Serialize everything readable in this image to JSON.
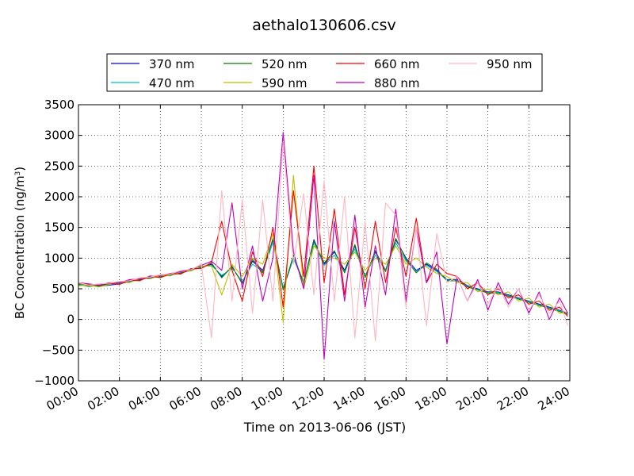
{
  "chart_data": {
    "type": "line",
    "title": "aethalo130606.csv",
    "xlabel": "Time on 2013-06-06 (JST)",
    "ylabel_main": "BC Concentration (ng/m",
    "ylabel_sup": "3",
    "ylabel_close": ")",
    "xlim": [
      "00:00",
      "24:00"
    ],
    "ylim": [
      -1000,
      3500
    ],
    "x_ticks": [
      "00:00",
      "02:00",
      "04:00",
      "06:00",
      "08:00",
      "10:00",
      "12:00",
      "14:00",
      "16:00",
      "18:00",
      "20:00",
      "22:00",
      "24:00"
    ],
    "y_ticks": [
      "−1000",
      "−500",
      "0",
      "500",
      "1000",
      "1500",
      "2000",
      "2500",
      "3000",
      "3500"
    ],
    "grid": true,
    "legend_position": "top",
    "x_hours": [
      0,
      0.5,
      1,
      1.5,
      2,
      2.5,
      3,
      3.5,
      4,
      4.5,
      5,
      5.5,
      6,
      6.5,
      7,
      7.5,
      8,
      8.5,
      9,
      9.5,
      10,
      10.5,
      11,
      11.5,
      12,
      12.5,
      13,
      13.5,
      14,
      14.5,
      15,
      15.5,
      16,
      16.5,
      17,
      17.5,
      18,
      18.5,
      19,
      19.5,
      20,
      20.5,
      21,
      21.5,
      22,
      22.5,
      23,
      23.5,
      23.9
    ],
    "series": [
      {
        "name": "370 nm",
        "color": "#0000ff",
        "values": [
          560,
          560,
          540,
          560,
          580,
          620,
          650,
          680,
          700,
          720,
          760,
          800,
          850,
          900,
          700,
          850,
          600,
          950,
          800,
          1300,
          500,
          1000,
          600,
          1300,
          900,
          1100,
          800,
          1200,
          700,
          1100,
          800,
          1300,
          1000,
          800,
          900,
          800,
          650,
          650,
          550,
          500,
          450,
          450,
          400,
          350,
          300,
          250,
          200,
          150,
          100
        ]
      },
      {
        "name": "470 nm",
        "color": "#00bfbf",
        "values": [
          580,
          550,
          560,
          570,
          590,
          610,
          660,
          690,
          710,
          730,
          770,
          810,
          860,
          880,
          720,
          830,
          620,
          900,
          780,
          1250,
          520,
          1000,
          620,
          1250,
          880,
          1050,
          780,
          1150,
          700,
          1050,
          800,
          1250,
          950,
          780,
          880,
          780,
          640,
          640,
          540,
          490,
          440,
          440,
          390,
          340,
          290,
          240,
          190,
          140,
          90
        ]
      },
      {
        "name": "520 nm",
        "color": "#008000",
        "values": [
          570,
          540,
          550,
          580,
          600,
          630,
          640,
          700,
          690,
          740,
          750,
          820,
          840,
          920,
          680,
          870,
          580,
          980,
          760,
          1320,
          480,
          1050,
          580,
          1280,
          920,
          1120,
          760,
          1220,
          680,
          1120,
          780,
          1320,
          980,
          760,
          920,
          820,
          630,
          630,
          530,
          480,
          430,
          430,
          380,
          330,
          280,
          230,
          180,
          130,
          80
        ]
      },
      {
        "name": "590 nm",
        "color": "#bfbf00",
        "values": [
          550,
          560,
          530,
          570,
          610,
          600,
          670,
          660,
          720,
          710,
          780,
          790,
          870,
          870,
          400,
          900,
          700,
          1000,
          900,
          1400,
          -50,
          2350,
          500,
          1200,
          1000,
          1000,
          900,
          1100,
          800,
          1000,
          900,
          1200,
          900,
          1000,
          850,
          750,
          700,
          600,
          600,
          450,
          500,
          400,
          450,
          300,
          350,
          200,
          250,
          100,
          120
        ]
      },
      {
        "name": "660 nm",
        "color": "#ff0000",
        "values": [
          590,
          570,
          560,
          590,
          570,
          640,
          630,
          710,
          680,
          750,
          740,
          830,
          830,
          930,
          1600,
          800,
          300,
          1100,
          700,
          1500,
          200,
          2100,
          700,
          2500,
          600,
          1800,
          400,
          1500,
          500,
          1600,
          600,
          1500,
          700,
          1650,
          600,
          900,
          750,
          700,
          500,
          600,
          400,
          500,
          350,
          400,
          250,
          300,
          150,
          200,
          50
        ]
      },
      {
        "name": "880 nm",
        "color": "#bf00bf",
        "values": [
          600,
          580,
          560,
          600,
          600,
          650,
          660,
          700,
          720,
          750,
          780,
          820,
          880,
          950,
          800,
          1900,
          500,
          1200,
          300,
          1000,
          3050,
          1100,
          500,
          2350,
          -650,
          1600,
          300,
          1700,
          200,
          1200,
          400,
          1800,
          300,
          1500,
          600,
          1100,
          -400,
          700,
          300,
          650,
          150,
          600,
          250,
          500,
          100,
          450,
          0,
          350,
          100
        ]
      },
      {
        "name": "950 nm",
        "color": "#ffb6c1",
        "values": [
          600,
          560,
          580,
          590,
          620,
          630,
          680,
          690,
          730,
          740,
          800,
          810,
          900,
          -300,
          2100,
          300,
          1950,
          100,
          1950,
          300,
          2900,
          900,
          2050,
          400,
          2250,
          300,
          2000,
          -300,
          1600,
          -350,
          1900,
          1700,
          200,
          1500,
          -100,
          1400,
          600,
          700,
          300,
          600,
          250,
          550,
          200,
          500,
          150,
          400,
          100,
          300,
          -100
        ]
      }
    ]
  }
}
